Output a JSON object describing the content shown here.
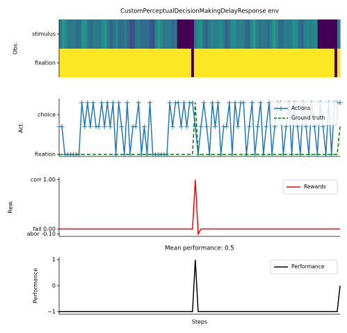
{
  "chart_data": [
    {
      "type": "heatmap",
      "title": "CustomPerceptualDecisionMakingDelayResponse env",
      "ylabel": "Obs.",
      "rows": [
        "stimulus",
        "fixation"
      ],
      "n_steps": 100,
      "fixation_off_steps": [
        47,
        98
      ],
      "stimulus_off_ranges": [
        [
          42,
          48
        ],
        [
          92,
          99
        ]
      ],
      "colormap": "viridis"
    },
    {
      "type": "line",
      "ylabel": "Act.",
      "yticks": [
        "fixation",
        "choice"
      ],
      "ylim": [
        -0.05,
        1.4
      ],
      "legend": "top-right",
      "series": [
        {
          "name": "Actions",
          "color": "#1f77b4",
          "values": [
            0.7,
            0.7,
            0,
            0,
            0,
            0,
            0,
            0,
            1.3,
            0.7,
            1.3,
            0.7,
            1.3,
            0.7,
            0.7,
            1.3,
            0.7,
            1.3,
            0.7,
            1.3,
            0,
            1.3,
            0.7,
            0,
            1.3,
            0,
            0.7,
            0.7,
            1.3,
            0,
            0.7,
            0,
            1.3,
            0,
            0,
            0,
            0,
            0,
            0,
            1.3,
            0.7,
            1.3,
            1.3,
            0.7,
            1.3,
            0.7,
            1.3,
            1.3,
            0.7,
            0,
            0.7,
            1.3,
            0.7,
            0,
            1.3,
            0.7,
            1.3,
            0,
            0.7,
            0.7,
            1.3,
            0,
            1.3,
            0.7,
            1.3,
            1.3,
            0,
            0.7,
            1.3,
            0,
            0.7,
            1.3,
            0,
            0.7,
            1.3,
            0,
            0.7,
            1.3,
            1.3,
            0,
            0.7,
            1.3,
            0,
            1.3,
            0.7,
            0,
            1.3,
            0.7,
            0,
            1.3,
            0.7,
            0,
            1.3,
            0.7,
            0,
            1.3,
            0,
            1.3,
            1.3,
            1.3
          ]
        },
        {
          "name": "Ground truth",
          "color": "#008000",
          "values": [
            0,
            0,
            0,
            0,
            0,
            0,
            0,
            0,
            0,
            0,
            0,
            0,
            0,
            0,
            0,
            0,
            0,
            0,
            0,
            0,
            0,
            0,
            0,
            0,
            0,
            0,
            0,
            0,
            0,
            0,
            0,
            0,
            0,
            0,
            0,
            0,
            0,
            0,
            0,
            0,
            0,
            0,
            0,
            0,
            0,
            0,
            0,
            0,
            1.3,
            0,
            0,
            0,
            0,
            0,
            0,
            0,
            0,
            0,
            0,
            0,
            0,
            0,
            0,
            0,
            0,
            0,
            0,
            0,
            0,
            0,
            0,
            0,
            0,
            0,
            0,
            0,
            0,
            0,
            0,
            0,
            0,
            0,
            0,
            0,
            0,
            0,
            0,
            0,
            0,
            0,
            0,
            0,
            0,
            0,
            0,
            0,
            0,
            0,
            0,
            0.7
          ]
        }
      ]
    },
    {
      "type": "line",
      "ylabel": "Rew.",
      "yticks": [
        {
          "value": 1.0,
          "label": "corr 1.00"
        },
        {
          "value": 0.0,
          "label": "fail 0.00"
        },
        {
          "value": -0.1,
          "label": "abor -0.10"
        }
      ],
      "ylim": [
        -0.15,
        1.05
      ],
      "legend": "top-right",
      "series": [
        {
          "name": "Rewards",
          "color": "#ff0000",
          "values": [
            0,
            0,
            0,
            0,
            0,
            0,
            0,
            0,
            0,
            0,
            0,
            0,
            0,
            0,
            0,
            0,
            0,
            0,
            0,
            0,
            0,
            0,
            0,
            0,
            0,
            0,
            0,
            0,
            0,
            0,
            0,
            0,
            0,
            0,
            0,
            0,
            0,
            0,
            0,
            0,
            0,
            0,
            0,
            0,
            0,
            0,
            0,
            0,
            1.0,
            -0.1,
            0,
            0,
            0,
            0,
            0,
            0,
            0,
            0,
            0,
            0,
            0,
            0,
            0,
            0,
            0,
            0,
            0,
            0,
            0,
            0,
            0,
            0,
            0,
            0,
            0,
            0,
            0,
            0,
            0,
            0,
            0,
            0,
            0,
            0,
            0,
            0,
            0,
            0,
            0,
            0,
            0,
            0,
            0,
            0,
            0,
            0,
            0,
            0,
            0,
            0
          ]
        }
      ]
    },
    {
      "type": "line",
      "title": "Mean performance: 0.5",
      "ylabel": "Performance",
      "xlabel": "Steps",
      "yticks": [
        -1,
        0,
        1
      ],
      "ylim": [
        -1.1,
        1.1
      ],
      "legend": "top-right",
      "series": [
        {
          "name": "Performance",
          "color": "#000000",
          "values": [
            -1,
            -1,
            -1,
            -1,
            -1,
            -1,
            -1,
            -1,
            -1,
            -1,
            -1,
            -1,
            -1,
            -1,
            -1,
            -1,
            -1,
            -1,
            -1,
            -1,
            -1,
            -1,
            -1,
            -1,
            -1,
            -1,
            -1,
            -1,
            -1,
            -1,
            -1,
            -1,
            -1,
            -1,
            -1,
            -1,
            -1,
            -1,
            -1,
            -1,
            -1,
            -1,
            -1,
            -1,
            -1,
            -1,
            -1,
            -1,
            1,
            -1,
            -1,
            -1,
            -1,
            -1,
            -1,
            -1,
            -1,
            -1,
            -1,
            -1,
            -1,
            -1,
            -1,
            -1,
            -1,
            -1,
            -1,
            -1,
            -1,
            -1,
            -1,
            -1,
            -1,
            -1,
            -1,
            -1,
            -1,
            -1,
            -1,
            -1,
            -1,
            -1,
            -1,
            -1,
            -1,
            -1,
            -1,
            -1,
            -1,
            -1,
            -1,
            -1,
            -1,
            -1,
            -1,
            -1,
            -1,
            -1,
            -1,
            0
          ]
        }
      ]
    }
  ]
}
